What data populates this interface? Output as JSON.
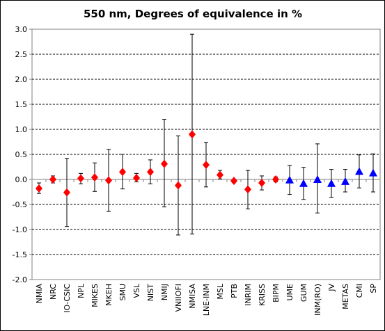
{
  "chart_data": {
    "type": "scatter",
    "title": "550 nm, Degrees of equivalence in %",
    "xlabel": "",
    "ylabel": "",
    "ylim": [
      -2.0,
      3.0
    ],
    "ytick_step": 0.5,
    "yticks": [
      "3.0",
      "2.5",
      "2.0",
      "1.5",
      "1.0",
      "0.5",
      "0.0",
      "-0.5",
      "-1.0",
      "-1.5",
      "-2.0"
    ],
    "grid": "horizontal-dashed",
    "legend": "none",
    "categories": [
      "NMIA",
      "NRC",
      "IO-CSIC",
      "NPL",
      "MIKES",
      "MKEH",
      "SMU",
      "VSL",
      "NIST",
      "NMIJ",
      "VNIIOFI",
      "NMISA",
      "LNE-INM",
      "MSL",
      "PTB",
      "INRIM",
      "KRISS",
      "BIPM",
      "UME",
      "GUM",
      "INM(RO)",
      "JV",
      "METAS",
      "CMI",
      "SP"
    ],
    "values": [
      -0.18,
      0.0,
      -0.26,
      0.02,
      0.04,
      -0.02,
      0.15,
      0.03,
      0.15,
      0.31,
      -0.12,
      0.9,
      0.29,
      0.09,
      -0.03,
      -0.2,
      -0.07,
      0.0,
      -0.01,
      -0.08,
      0.0,
      -0.08,
      -0.04,
      0.16,
      0.13
    ],
    "err_upper": [
      -0.07,
      0.07,
      0.42,
      0.12,
      0.33,
      0.6,
      0.5,
      0.12,
      0.39,
      1.2,
      0.87,
      2.9,
      0.74,
      0.18,
      0.0,
      0.18,
      0.07,
      0.05,
      0.28,
      0.24,
      0.71,
      0.2,
      0.2,
      0.49,
      0.51
    ],
    "err_lower": [
      -0.28,
      -0.07,
      -0.94,
      -0.09,
      -0.24,
      -0.64,
      -0.19,
      -0.05,
      -0.09,
      -0.55,
      -1.11,
      -1.09,
      -0.15,
      0.01,
      -0.06,
      -0.59,
      -0.21,
      -0.05,
      -0.3,
      -0.4,
      -0.67,
      -0.36,
      -0.25,
      -0.17,
      -0.25
    ],
    "markers": [
      "diamond",
      "diamond",
      "diamond",
      "diamond",
      "diamond",
      "diamond",
      "diamond",
      "diamond",
      "diamond",
      "diamond",
      "diamond",
      "diamond",
      "diamond",
      "diamond",
      "diamond",
      "diamond",
      "diamond",
      "diamond",
      "triangle",
      "triangle",
      "triangle",
      "triangle",
      "triangle",
      "triangle",
      "triangle"
    ],
    "colors": {
      "diamond": "#ff0000",
      "triangle": "#0000ff",
      "errorbar": "#000000",
      "grid": "#000000",
      "axis": "#808080"
    }
  }
}
